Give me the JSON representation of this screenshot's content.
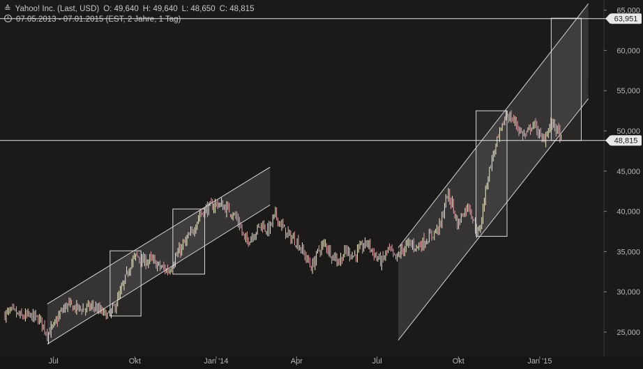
{
  "header": {
    "icon": "chart-type-icon",
    "icon_glyph": "≙",
    "instrument": "Yahoo! Inc. (Last, USD)",
    "open": "O: 49,640",
    "high": "H: 49,640",
    "low": "L: 48,650",
    "close": "C: 48,815",
    "period": "07.05.2013 - 07.01.2015 (EST, 2 Jahre, 1 Tag)"
  },
  "chart_data": {
    "type": "candlestick",
    "x_ticks": [
      "Jul",
      "Okt",
      "Jan '14",
      "Apr",
      "Jul",
      "Okt",
      "Jan '15"
    ],
    "y_ticks": [
      "25,000",
      "30,000",
      "35,000",
      "40,000",
      "45,000",
      "50,000",
      "55,000",
      "60,000",
      "65,000"
    ],
    "y_tick_values": [
      25,
      30,
      35,
      40,
      45,
      50,
      55,
      60,
      65
    ],
    "ylim": [
      22.5,
      65.8
    ],
    "xlim_days": [
      0,
      612
    ],
    "x_tick_days": [
      55,
      147,
      239,
      330,
      421,
      513,
      605
    ],
    "price_lines": [
      {
        "label": "63,951",
        "value": 63.951
      },
      {
        "label": "48,815",
        "value": 48.815
      }
    ],
    "trend_channels": [
      {
        "start_day": 48,
        "end_day": 300,
        "lower": [
          23.5,
          40.8
        ],
        "upper": [
          28.5,
          45.5
        ]
      },
      {
        "start_day": 445,
        "end_day": 660,
        "lower": [
          24.0,
          54.0
        ],
        "upper": [
          35.5,
          65.8
        ]
      }
    ],
    "boxes": [
      {
        "start_day": 119,
        "end_day": 154,
        "low": 27.0,
        "high": 35.1
      },
      {
        "start_day": 190,
        "end_day": 226,
        "low": 32.2,
        "high": 40.3
      },
      {
        "start_day": 533,
        "end_day": 568,
        "low": 36.9,
        "high": 52.5
      },
      {
        "start_day": 618,
        "end_day": 652,
        "low": 48.8,
        "high": 64.0
      }
    ],
    "price_path": [
      [
        0,
        27.2
      ],
      [
        8,
        27.6
      ],
      [
        18,
        26.9
      ],
      [
        30,
        27.0
      ],
      [
        40,
        26.5
      ],
      [
        48,
        24.8
      ],
      [
        56,
        25.8
      ],
      [
        62,
        27.2
      ],
      [
        70,
        28.4
      ],
      [
        80,
        28.0
      ],
      [
        90,
        27.9
      ],
      [
        100,
        28.2
      ],
      [
        110,
        27.4
      ],
      [
        118,
        27.0
      ],
      [
        126,
        28.6
      ],
      [
        134,
        30.8
      ],
      [
        142,
        33.5
      ],
      [
        149,
        34.5
      ],
      [
        156,
        33.7
      ],
      [
        165,
        34.0
      ],
      [
        175,
        33.1
      ],
      [
        185,
        32.6
      ],
      [
        193,
        34.3
      ],
      [
        203,
        36.0
      ],
      [
        212,
        37.4
      ],
      [
        220,
        39.6
      ],
      [
        230,
        40.4
      ],
      [
        240,
        41.0
      ],
      [
        250,
        40.4
      ],
      [
        258,
        39.8
      ],
      [
        265,
        38.5
      ],
      [
        272,
        36.2
      ],
      [
        280,
        37.0
      ],
      [
        290,
        38.4
      ],
      [
        298,
        37.6
      ],
      [
        306,
        39.6
      ],
      [
        313,
        38.2
      ],
      [
        320,
        37.0
      ],
      [
        330,
        36.3
      ],
      [
        340,
        34.4
      ],
      [
        347,
        33.0
      ],
      [
        355,
        35.2
      ],
      [
        362,
        36.0
      ],
      [
        370,
        34.6
      ],
      [
        378,
        33.8
      ],
      [
        386,
        35.1
      ],
      [
        395,
        34.5
      ],
      [
        402,
        35.3
      ],
      [
        410,
        36.2
      ],
      [
        418,
        34.6
      ],
      [
        426,
        33.7
      ],
      [
        434,
        35.3
      ],
      [
        442,
        34.0
      ],
      [
        448,
        35.0
      ],
      [
        457,
        36.0
      ],
      [
        466,
        35.6
      ],
      [
        475,
        36.3
      ],
      [
        485,
        37.3
      ],
      [
        493,
        38.4
      ],
      [
        500,
        42.1
      ],
      [
        506,
        41.0
      ],
      [
        512,
        38.3
      ],
      [
        518,
        39.8
      ],
      [
        525,
        40.8
      ],
      [
        531,
        38.4
      ],
      [
        536,
        37.0
      ],
      [
        541,
        40.5
      ],
      [
        546,
        44.2
      ],
      [
        551,
        46.5
      ],
      [
        556,
        48.4
      ],
      [
        562,
        50.2
      ],
      [
        567,
        52.2
      ],
      [
        572,
        51.6
      ],
      [
        578,
        51.0
      ],
      [
        584,
        49.7
      ],
      [
        590,
        49.4
      ],
      [
        596,
        50.8
      ],
      [
        602,
        50.3
      ],
      [
        608,
        48.6
      ],
      [
        614,
        50.1
      ],
      [
        620,
        51.0
      ],
      [
        627,
        49.6
      ],
      [
        630,
        48.8
      ]
    ]
  }
}
